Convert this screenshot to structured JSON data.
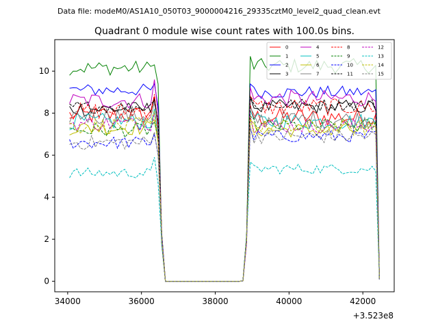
{
  "header": {
    "data_file": "Data file: modeM0/AS1A10_050T03_9000004216_29335cztM0_level2_quad_clean.evt"
  },
  "chart_data": {
    "type": "line",
    "title": "Quadrant 0 module wise count rates with 100.0s bins.",
    "xlabel": "",
    "ylabel": "",
    "xlim": [
      33650,
      42850
    ],
    "ylim": [
      -0.5,
      11.5
    ],
    "x_ticks": [
      34000,
      36000,
      38000,
      40000,
      42000
    ],
    "x_tick_labels": [
      "34000",
      "36000",
      "38000",
      "40000",
      "42000"
    ],
    "y_ticks": [
      0,
      2,
      4,
      6,
      8,
      10
    ],
    "y_tick_labels": [
      "0",
      "2",
      "4",
      "6",
      "8",
      "10"
    ],
    "x_offset_label": "+3.523e8",
    "legend_position": "top-right",
    "legend_columns": 4,
    "active_intervals": [
      [
        34050,
        36450
      ],
      [
        38850,
        42350
      ]
    ],
    "x_step": 100,
    "x_end": 42450,
    "series": [
      {
        "name": "0",
        "color": "#ff0000",
        "dash": "solid",
        "level_a": 7.9,
        "level_b": 7.8,
        "amp": 0.45,
        "peak_a": 8.8
      },
      {
        "name": "1",
        "color": "#008000",
        "dash": "solid",
        "level_a": 10.15,
        "level_b": 10.25,
        "amp": 0.35,
        "peak_a": 10.3
      },
      {
        "name": "2",
        "color": "#0000ff",
        "dash": "solid",
        "level_a": 9.1,
        "level_b": 9.0,
        "amp": 0.3,
        "peak_a": 9.4
      },
      {
        "name": "3",
        "color": "#000000",
        "dash": "solid",
        "level_a": 8.2,
        "level_b": 8.3,
        "amp": 0.35,
        "peak_a": 8.7
      },
      {
        "name": "4",
        "color": "#bf00bf",
        "dash": "solid",
        "level_a": 8.6,
        "level_b": 8.7,
        "amp": 0.4,
        "peak_a": 9.6
      },
      {
        "name": "5",
        "color": "#00bfbf",
        "dash": "solid",
        "level_a": 7.6,
        "level_b": 7.6,
        "amp": 0.4,
        "peak_a": 8.2
      },
      {
        "name": "6",
        "color": "#bfbf00",
        "dash": "solid",
        "level_a": 7.3,
        "level_b": 7.2,
        "amp": 0.35,
        "peak_a": 7.7
      },
      {
        "name": "7",
        "color": "#808080",
        "dash": "solid",
        "level_a": 7.9,
        "level_b": 7.7,
        "amp": 0.45,
        "peak_a": 8.5
      },
      {
        "name": "8",
        "color": "#ff0000",
        "dash": "dashed",
        "level_a": 8.1,
        "level_b": 8.3,
        "amp": 0.4,
        "peak_a": 8.9
      },
      {
        "name": "9",
        "color": "#008000",
        "dash": "dashed",
        "level_a": 7.2,
        "level_b": 7.4,
        "amp": 0.35,
        "peak_a": 7.6
      },
      {
        "name": "10",
        "color": "#0000ff",
        "dash": "dashed",
        "level_a": 6.6,
        "level_b": 6.9,
        "amp": 0.3,
        "peak_a": 7.0
      },
      {
        "name": "11",
        "color": "#000000",
        "dash": "dashed",
        "level_a": 8.3,
        "level_b": 8.4,
        "amp": 0.3,
        "peak_a": 8.6
      },
      {
        "name": "12",
        "color": "#bf00bf",
        "dash": "dashed",
        "level_a": 7.5,
        "level_b": 7.4,
        "amp": 0.35,
        "peak_a": 8.0
      },
      {
        "name": "13",
        "color": "#00bfbf",
        "dash": "dashed",
        "level_a": 5.15,
        "level_b": 5.35,
        "amp": 0.25,
        "peak_a": 5.9
      },
      {
        "name": "14",
        "color": "#bfbf00",
        "dash": "dashed",
        "level_a": 7.4,
        "level_b": 7.3,
        "amp": 0.4,
        "peak_a": 8.1
      },
      {
        "name": "15",
        "color": "#808080",
        "dash": "dashed",
        "level_a": 6.6,
        "level_b": 6.9,
        "amp": 0.35,
        "peak_a": 7.1
      }
    ]
  }
}
